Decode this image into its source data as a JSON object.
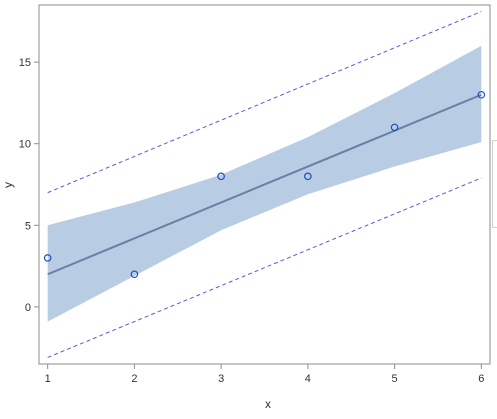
{
  "chart_data": {
    "type": "scatter",
    "title": "",
    "xlabel": "x",
    "ylabel": "y",
    "xlim": [
      0.9,
      6.1
    ],
    "ylim": [
      -3.5,
      18.5
    ],
    "xticks": [
      1,
      2,
      3,
      4,
      5,
      6
    ],
    "yticks": [
      0,
      5,
      10,
      15
    ],
    "grid": false,
    "legend": "clipped at right edge",
    "points": {
      "x": [
        1,
        2,
        3,
        4,
        5,
        6
      ],
      "y": [
        3,
        2,
        8,
        8,
        11,
        13
      ]
    },
    "fit": {
      "x": [
        1,
        6
      ],
      "y": [
        2,
        13
      ]
    },
    "confidence_band": {
      "x": [
        1,
        2,
        3,
        4,
        5,
        6
      ],
      "lower": [
        -0.9,
        1.9,
        4.7,
        6.9,
        8.6,
        10.1
      ],
      "upper": [
        5.0,
        6.4,
        8.1,
        10.4,
        13.1,
        16.0
      ]
    },
    "prediction_limits": {
      "x": [
        1,
        6
      ],
      "lower": [
        -3.1,
        7.9
      ],
      "upper": [
        7.0,
        18.1
      ]
    },
    "colors": {
      "frame": "#8c8c8c",
      "band_fill": "#b8cce4",
      "fit_line": "#6a7fa3",
      "prediction_line": "#5a5ad6",
      "marker": "#1f4fbf"
    }
  }
}
